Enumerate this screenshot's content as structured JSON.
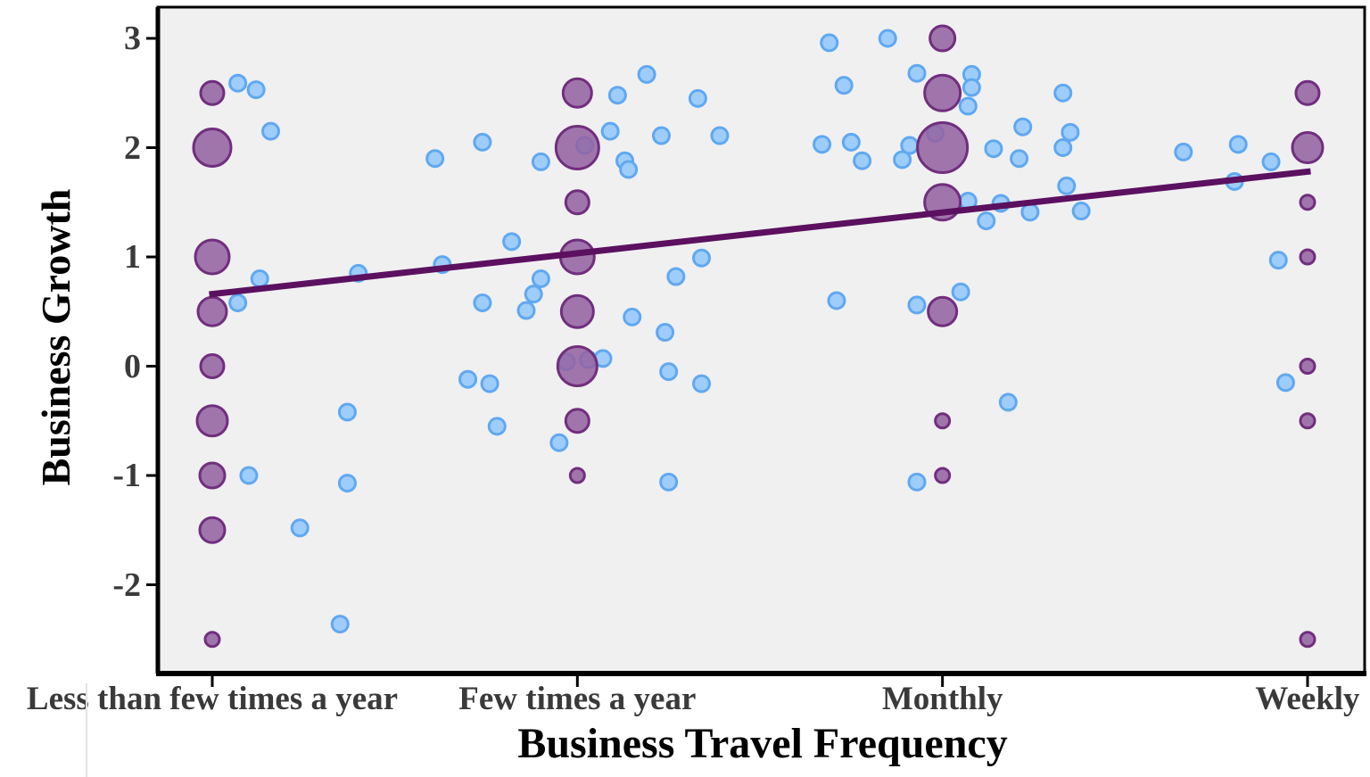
{
  "figure": {
    "x_axis_title": "Business Travel Frequency",
    "y_axis_title": "Business Growth"
  },
  "chart_data": {
    "type": "scatter",
    "title": "",
    "xlabel": "Business Travel Frequency",
    "ylabel": "Business Growth",
    "x_categories": [
      "Less than few times a year",
      "Few times a year",
      "Monthly",
      "Weekly"
    ],
    "x_positions": [
      1,
      2,
      3,
      4
    ],
    "y_tick_labels": [
      "3",
      "2",
      "1",
      "0",
      "-1",
      "-2"
    ],
    "y_tick_values": [
      3,
      2,
      1,
      0,
      -1,
      -2
    ],
    "ylim": [
      -2.8,
      3.25
    ],
    "xlim": [
      0.85,
      4.16
    ],
    "grid": false,
    "legend_position": "none",
    "plot_background": "#F0F0F0",
    "frame_color": "#000000",
    "series": [
      {
        "name": "blue-jitter-dots",
        "fill": "#9ECDFB",
        "stroke": "#5FA8F2",
        "radius": 9,
        "points": [
          [
            1.07,
            2.59
          ],
          [
            1.12,
            2.53
          ],
          [
            1.16,
            2.15
          ],
          [
            1.13,
            0.8
          ],
          [
            1.4,
            0.85
          ],
          [
            1.07,
            0.58
          ],
          [
            1.37,
            -0.42
          ],
          [
            1.1,
            -1.0
          ],
          [
            1.37,
            -1.07
          ],
          [
            1.24,
            -1.48
          ],
          [
            1.35,
            -2.36
          ],
          [
            1.61,
            1.9
          ],
          [
            1.74,
            2.05
          ],
          [
            1.9,
            1.87
          ],
          [
            2.11,
            2.48
          ],
          [
            2.19,
            2.67
          ],
          [
            2.33,
            2.45
          ],
          [
            2.09,
            2.15
          ],
          [
            2.23,
            2.11
          ],
          [
            2.13,
            1.88
          ],
          [
            2.14,
            1.8
          ],
          [
            1.82,
            1.14
          ],
          [
            1.63,
            0.93
          ],
          [
            2.34,
            0.99
          ],
          [
            2.27,
            0.82
          ],
          [
            1.9,
            0.8
          ],
          [
            1.88,
            0.66
          ],
          [
            1.74,
            0.58
          ],
          [
            1.86,
            0.51
          ],
          [
            2.15,
            0.45
          ],
          [
            2.24,
            0.31
          ],
          [
            1.97,
            0.04
          ],
          [
            2.03,
            0.06
          ],
          [
            2.07,
            0.07
          ],
          [
            2.25,
            -0.05
          ],
          [
            2.34,
            -0.16
          ],
          [
            1.7,
            -0.12
          ],
          [
            1.76,
            -0.16
          ],
          [
            1.78,
            -0.55
          ],
          [
            1.95,
            -0.7
          ],
          [
            2.25,
            -1.06
          ],
          [
            2.02,
            2.02
          ],
          [
            2.69,
            2.96
          ],
          [
            2.85,
            3.0
          ],
          [
            2.73,
            2.57
          ],
          [
            2.93,
            2.68
          ],
          [
            3.08,
            2.67
          ],
          [
            3.08,
            2.55
          ],
          [
            3.07,
            2.38
          ],
          [
            2.39,
            2.11
          ],
          [
            2.67,
            2.03
          ],
          [
            2.75,
            2.05
          ],
          [
            2.78,
            1.88
          ],
          [
            2.91,
            2.02
          ],
          [
            2.89,
            1.89
          ],
          [
            2.98,
            2.13
          ],
          [
            3.14,
            1.99
          ],
          [
            3.22,
            2.19
          ],
          [
            3.21,
            1.9
          ],
          [
            3.07,
            1.51
          ],
          [
            3.16,
            1.49
          ],
          [
            3.12,
            1.33
          ],
          [
            3.24,
            1.41
          ],
          [
            2.71,
            0.6
          ],
          [
            2.93,
            0.56
          ],
          [
            3.05,
            0.68
          ],
          [
            3.18,
            -0.33
          ],
          [
            2.93,
            -1.06
          ],
          [
            3.33,
            2.5
          ],
          [
            3.35,
            2.14
          ],
          [
            3.33,
            2.0
          ],
          [
            3.66,
            1.96
          ],
          [
            3.81,
            2.03
          ],
          [
            3.9,
            1.87
          ],
          [
            3.34,
            1.65
          ],
          [
            3.8,
            1.69
          ],
          [
            3.38,
            1.42
          ],
          [
            3.92,
            0.97
          ],
          [
            3.94,
            -0.15
          ]
        ]
      },
      {
        "name": "purple-category-bubbles",
        "fill": "#9463A2",
        "stroke": "#712E7E",
        "fill_opacity": 0.87,
        "points": [
          [
            1,
            2.5,
            13
          ],
          [
            1,
            2.0,
            21
          ],
          [
            1,
            1.0,
            19
          ],
          [
            1,
            0.5,
            16
          ],
          [
            1,
            0.0,
            13
          ],
          [
            1,
            -0.5,
            17
          ],
          [
            1,
            -1.0,
            14
          ],
          [
            1,
            -1.5,
            14
          ],
          [
            1,
            -2.5,
            8
          ],
          [
            2,
            2.5,
            16
          ],
          [
            2,
            2.0,
            24
          ],
          [
            2,
            1.5,
            13
          ],
          [
            2,
            1.0,
            19
          ],
          [
            2,
            0.5,
            18
          ],
          [
            2,
            0.0,
            22
          ],
          [
            2,
            -0.5,
            13
          ],
          [
            2,
            -1.0,
            8
          ],
          [
            3,
            3.0,
            14
          ],
          [
            3,
            2.5,
            20
          ],
          [
            3,
            2.0,
            28
          ],
          [
            3,
            1.5,
            20
          ],
          [
            3,
            0.5,
            16
          ],
          [
            3,
            -0.5,
            8
          ],
          [
            3,
            -1.0,
            8
          ],
          [
            4,
            2.5,
            13
          ],
          [
            4,
            2.0,
            17
          ],
          [
            4,
            1.5,
            8
          ],
          [
            4,
            1.0,
            8
          ],
          [
            4,
            0.0,
            8
          ],
          [
            4,
            -0.5,
            8
          ],
          [
            4,
            -2.5,
            8
          ]
        ]
      }
    ],
    "trend_line": {
      "color": "#5B1060",
      "width": 7,
      "from": [
        1.0,
        0.66
      ],
      "to": [
        4.0,
        1.78
      ]
    }
  }
}
